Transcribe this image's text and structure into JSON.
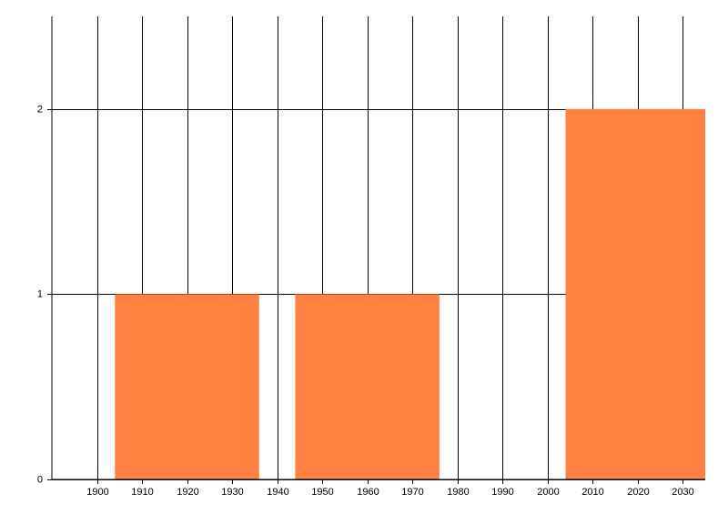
{
  "chart_data": {
    "type": "bar",
    "x": [
      1920,
      1960,
      2020
    ],
    "values": [
      1,
      1,
      2
    ],
    "bar_width": 32,
    "color": "#ff8243",
    "xlim": [
      1890,
      2035
    ],
    "xticks": [
      1900,
      1910,
      1920,
      1930,
      1940,
      1950,
      1960,
      1970,
      1980,
      1990,
      2000,
      2010,
      2020,
      2030
    ],
    "ylim": [
      0,
      2.5
    ],
    "yticks": [
      0,
      1,
      2
    ],
    "grid": true
  }
}
